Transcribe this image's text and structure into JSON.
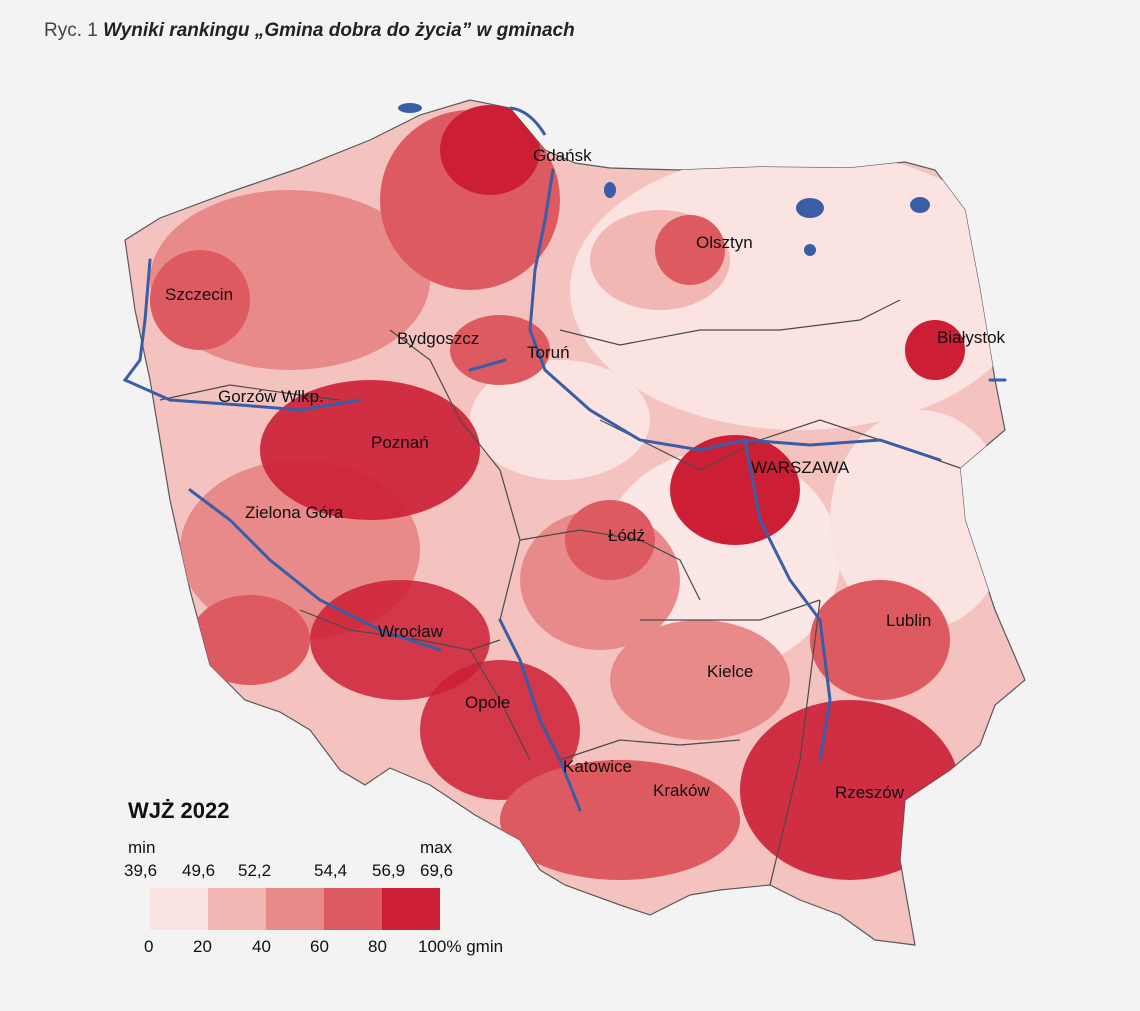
{
  "caption": {
    "figure_label": "Ryc. 1",
    "title": "Wyniki rankingu „Gmina dobra do życia” w gminach"
  },
  "cities": [
    {
      "id": "gdansk",
      "name": "Gdańsk"
    },
    {
      "id": "olsztyn",
      "name": "Olsztyn"
    },
    {
      "id": "szczecin",
      "name": "Szczecin"
    },
    {
      "id": "bydgoszcz",
      "name": "Bydgoszcz"
    },
    {
      "id": "torun",
      "name": "Toruń"
    },
    {
      "id": "bialystok",
      "name": "Białystok"
    },
    {
      "id": "gorzow",
      "name": "Gorzów Wlkp."
    },
    {
      "id": "poznan",
      "name": "Poznań"
    },
    {
      "id": "warszawa",
      "name": "WARSZAWA"
    },
    {
      "id": "zielona-gora",
      "name": "Zielona Góra"
    },
    {
      "id": "lodz",
      "name": "Łódź"
    },
    {
      "id": "wroclaw",
      "name": "Wrocław"
    },
    {
      "id": "lublin",
      "name": "Lublin"
    },
    {
      "id": "kielce",
      "name": "Kielce"
    },
    {
      "id": "opole",
      "name": "Opole"
    },
    {
      "id": "katowice",
      "name": "Katowice"
    },
    {
      "id": "krakow",
      "name": "Kraków"
    },
    {
      "id": "rzeszow",
      "name": "Rzeszów"
    }
  ],
  "legend": {
    "title": "WJŻ 2022",
    "min_label": "min",
    "max_label": "max",
    "thresholds": [
      "39,6",
      "49,6",
      "52,2",
      "54,4",
      "56,9",
      "69,6"
    ],
    "percentiles": [
      "0",
      "20",
      "40",
      "60",
      "80",
      "100% gmin"
    ],
    "colors": [
      "#fae3e1",
      "#f2b7b3",
      "#e8898a",
      "#dc5a60",
      "#cc1f35"
    ]
  },
  "colors": {
    "water": "#3a5ea6",
    "border": "#4a4a4a"
  }
}
